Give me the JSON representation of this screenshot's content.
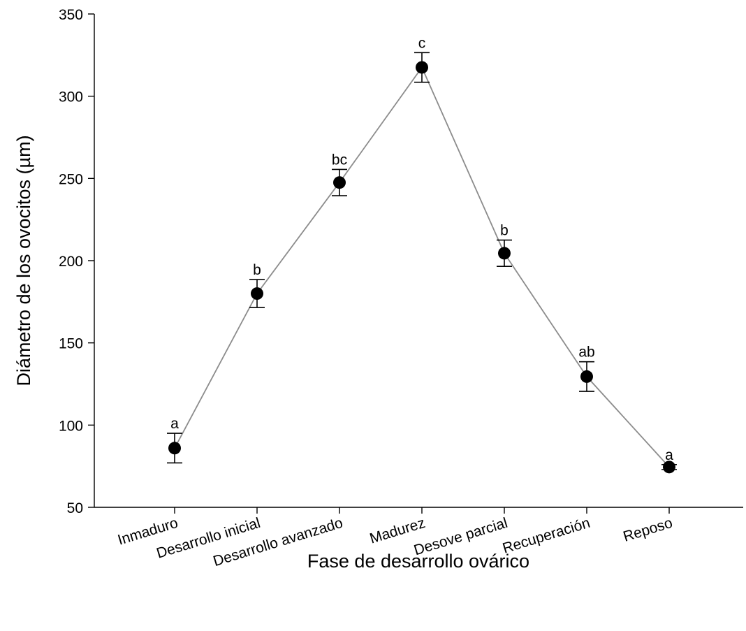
{
  "chart_data": {
    "type": "scatter",
    "title": "",
    "xlabel": "Fase de desarrollo ovárico",
    "ylabel": "Diámetro de los ovocitos (µm)",
    "ylim": [
      50,
      350
    ],
    "yticks": [
      50,
      100,
      150,
      200,
      250,
      300,
      350
    ],
    "ytick_labels": [
      "50",
      "100",
      "150",
      "200",
      "250",
      "300",
      "350"
    ],
    "categories": [
      "Inmaduro",
      "Desarrollo inicial",
      "Desarrollo avanzado",
      "Madurez",
      "Desove parcial",
      "Recuperación",
      "Reposo"
    ],
    "series": [
      {
        "values": [
          86,
          180,
          247.5,
          317.5,
          204.5,
          129.5,
          74.5
        ],
        "error": [
          9,
          8.5,
          8,
          9,
          8,
          9,
          1.5
        ],
        "significance_letters": [
          "a",
          "b",
          "bc",
          "c",
          "b",
          "ab",
          "a"
        ],
        "marker": "filled-circle",
        "marker_color": "#000000",
        "line_color": "#8c8c8c",
        "error_bar_color": "#000000"
      }
    ],
    "grid": false,
    "legend": "none",
    "x_tick_label_rotation": "angled"
  }
}
